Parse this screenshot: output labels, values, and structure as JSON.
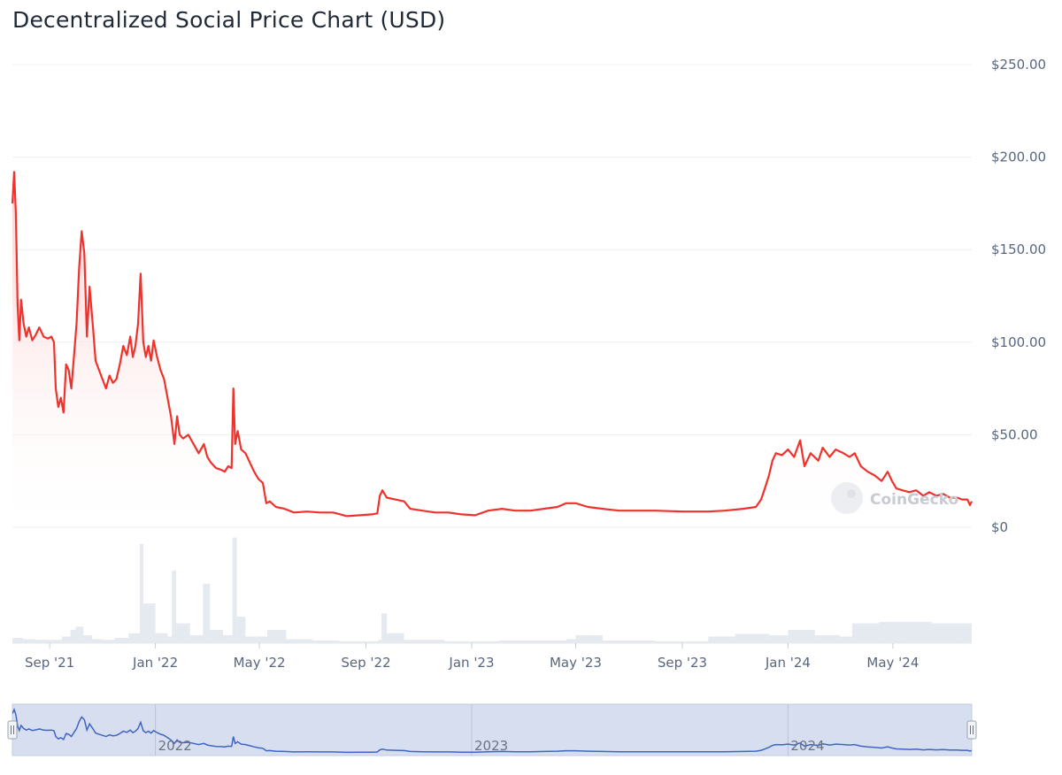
{
  "title": "Decentralized Social Price Chart (USD)",
  "watermark": "CoinGecko",
  "colors": {
    "price_line": "#f0322d",
    "area_top": "#fbc7c5",
    "volume": "#e5e9f0",
    "navigator_line": "#3f66c5",
    "navigator_fill": "#d6def0",
    "grid": "#eceff3",
    "axis_text": "#58667e"
  },
  "chart_data": {
    "type": "line",
    "title": "Decentralized Social Price Chart (USD)",
    "ylim": [
      0,
      250
    ],
    "y_ticks": [
      {
        "value": 0,
        "label": "$0"
      },
      {
        "value": 50,
        "label": "$50.00"
      },
      {
        "value": 100,
        "label": "$100.00"
      },
      {
        "value": 150,
        "label": "$150.00"
      },
      {
        "value": 200,
        "label": "$200.00"
      },
      {
        "value": 250,
        "label": "$250.00"
      }
    ],
    "xlim": [
      "2021-07-20",
      "2024-07-31"
    ],
    "x_ticks": [
      {
        "date": "2021-09-01",
        "label": "Sep '21"
      },
      {
        "date": "2022-01-01",
        "label": "Jan '22"
      },
      {
        "date": "2022-05-01",
        "label": "May '22"
      },
      {
        "date": "2022-09-01",
        "label": "Sep '22"
      },
      {
        "date": "2023-01-01",
        "label": "Jan '23"
      },
      {
        "date": "2023-05-01",
        "label": "May '23"
      },
      {
        "date": "2023-09-01",
        "label": "Sep '23"
      },
      {
        "date": "2024-01-01",
        "label": "Jan '24"
      },
      {
        "date": "2024-05-01",
        "label": "May '24"
      }
    ],
    "navigator_ticks": [
      {
        "date": "2022-01-01",
        "label": "2022"
      },
      {
        "date": "2023-01-01",
        "label": "2023"
      },
      {
        "date": "2024-01-01",
        "label": "2024"
      }
    ],
    "series": [
      {
        "values": [
          [
            "2021-07-20",
            175
          ],
          [
            "2021-07-22",
            192
          ],
          [
            "2021-07-24",
            170
          ],
          [
            "2021-07-26",
            120
          ],
          [
            "2021-07-28",
            101
          ],
          [
            "2021-07-30",
            123
          ],
          [
            "2021-08-02",
            110
          ],
          [
            "2021-08-05",
            103
          ],
          [
            "2021-08-08",
            108
          ],
          [
            "2021-08-12",
            101
          ],
          [
            "2021-08-16",
            104
          ],
          [
            "2021-08-20",
            108
          ],
          [
            "2021-08-25",
            103
          ],
          [
            "2021-08-30",
            102
          ],
          [
            "2021-09-03",
            103
          ],
          [
            "2021-09-06",
            100
          ],
          [
            "2021-09-08",
            75
          ],
          [
            "2021-09-11",
            65
          ],
          [
            "2021-09-14",
            70
          ],
          [
            "2021-09-17",
            62
          ],
          [
            "2021-09-20",
            88
          ],
          [
            "2021-09-23",
            85
          ],
          [
            "2021-09-26",
            75
          ],
          [
            "2021-09-29",
            92
          ],
          [
            "2021-10-02",
            110
          ],
          [
            "2021-10-05",
            140
          ],
          [
            "2021-10-08",
            160
          ],
          [
            "2021-10-11",
            148
          ],
          [
            "2021-10-14",
            103
          ],
          [
            "2021-10-17",
            130
          ],
          [
            "2021-10-21",
            108
          ],
          [
            "2021-10-24",
            90
          ],
          [
            "2021-10-28",
            85
          ],
          [
            "2021-11-01",
            80
          ],
          [
            "2021-11-05",
            75
          ],
          [
            "2021-11-09",
            82
          ],
          [
            "2021-11-13",
            78
          ],
          [
            "2021-11-17",
            80
          ],
          [
            "2021-11-21",
            88
          ],
          [
            "2021-11-25",
            98
          ],
          [
            "2021-11-29",
            93
          ],
          [
            "2021-12-03",
            103
          ],
          [
            "2021-12-06",
            92
          ],
          [
            "2021-12-09",
            98
          ],
          [
            "2021-12-12",
            110
          ],
          [
            "2021-12-15",
            137
          ],
          [
            "2021-12-18",
            100
          ],
          [
            "2021-12-21",
            92
          ],
          [
            "2021-12-24",
            98
          ],
          [
            "2021-12-27",
            90
          ],
          [
            "2021-12-30",
            101
          ],
          [
            "2022-01-03",
            92
          ],
          [
            "2022-01-07",
            85
          ],
          [
            "2022-01-11",
            80
          ],
          [
            "2022-01-15",
            70
          ],
          [
            "2022-01-19",
            60
          ],
          [
            "2022-01-23",
            45
          ],
          [
            "2022-01-26",
            60
          ],
          [
            "2022-01-29",
            50
          ],
          [
            "2022-02-02",
            48
          ],
          [
            "2022-02-08",
            50
          ],
          [
            "2022-02-14",
            45
          ],
          [
            "2022-02-20",
            40
          ],
          [
            "2022-02-26",
            45
          ],
          [
            "2022-03-02",
            38
          ],
          [
            "2022-03-06",
            35
          ],
          [
            "2022-03-12",
            32
          ],
          [
            "2022-03-18",
            31
          ],
          [
            "2022-03-22",
            30
          ],
          [
            "2022-03-26",
            33
          ],
          [
            "2022-03-30",
            32
          ],
          [
            "2022-04-01",
            75
          ],
          [
            "2022-04-03",
            45
          ],
          [
            "2022-04-06",
            52
          ],
          [
            "2022-04-10",
            42
          ],
          [
            "2022-04-15",
            40
          ],
          [
            "2022-04-20",
            35
          ],
          [
            "2022-04-25",
            30
          ],
          [
            "2022-04-30",
            26
          ],
          [
            "2022-05-05",
            24
          ],
          [
            "2022-05-09",
            13
          ],
          [
            "2022-05-13",
            14
          ],
          [
            "2022-05-20",
            11
          ],
          [
            "2022-05-30",
            10
          ],
          [
            "2022-06-10",
            8
          ],
          [
            "2022-06-25",
            8.5
          ],
          [
            "2022-07-10",
            8
          ],
          [
            "2022-07-25",
            8
          ],
          [
            "2022-08-10",
            6
          ],
          [
            "2022-08-25",
            6.5
          ],
          [
            "2022-09-08",
            7
          ],
          [
            "2022-09-14",
            7.5
          ],
          [
            "2022-09-17",
            17
          ],
          [
            "2022-09-20",
            20
          ],
          [
            "2022-09-25",
            16
          ],
          [
            "2022-10-05",
            15
          ],
          [
            "2022-10-15",
            14
          ],
          [
            "2022-10-22",
            10
          ],
          [
            "2022-11-05",
            9
          ],
          [
            "2022-11-20",
            8
          ],
          [
            "2022-12-05",
            8
          ],
          [
            "2022-12-20",
            7
          ],
          [
            "2023-01-05",
            6.5
          ],
          [
            "2023-01-20",
            9
          ],
          [
            "2023-02-05",
            10
          ],
          [
            "2023-02-20",
            9
          ],
          [
            "2023-03-10",
            9
          ],
          [
            "2023-03-25",
            10
          ],
          [
            "2023-04-10",
            11
          ],
          [
            "2023-04-20",
            13
          ],
          [
            "2023-05-01",
            13
          ],
          [
            "2023-05-15",
            11
          ],
          [
            "2023-06-01",
            10
          ],
          [
            "2023-06-20",
            9
          ],
          [
            "2023-07-10",
            9
          ],
          [
            "2023-08-01",
            9
          ],
          [
            "2023-09-01",
            8.5
          ],
          [
            "2023-10-01",
            8.5
          ],
          [
            "2023-10-20",
            9
          ],
          [
            "2023-11-10",
            10
          ],
          [
            "2023-11-25",
            11
          ],
          [
            "2023-12-01",
            15
          ],
          [
            "2023-12-06",
            22
          ],
          [
            "2023-12-10",
            28
          ],
          [
            "2023-12-14",
            36
          ],
          [
            "2023-12-18",
            40
          ],
          [
            "2023-12-25",
            39
          ],
          [
            "2024-01-01",
            42
          ],
          [
            "2024-01-08",
            38
          ],
          [
            "2024-01-15",
            47
          ],
          [
            "2024-01-20",
            33
          ],
          [
            "2024-01-27",
            40
          ],
          [
            "2024-02-05",
            36
          ],
          [
            "2024-02-10",
            43
          ],
          [
            "2024-02-18",
            38
          ],
          [
            "2024-02-25",
            42
          ],
          [
            "2024-03-05",
            40
          ],
          [
            "2024-03-12",
            38
          ],
          [
            "2024-03-18",
            40
          ],
          [
            "2024-03-25",
            33
          ],
          [
            "2024-04-02",
            30
          ],
          [
            "2024-04-10",
            28
          ],
          [
            "2024-04-18",
            25
          ],
          [
            "2024-04-25",
            30
          ],
          [
            "2024-04-30",
            25
          ],
          [
            "2024-05-05",
            21
          ],
          [
            "2024-05-12",
            20
          ],
          [
            "2024-05-20",
            19
          ],
          [
            "2024-05-28",
            20
          ],
          [
            "2024-06-05",
            17
          ],
          [
            "2024-06-12",
            19
          ],
          [
            "2024-06-20",
            17
          ],
          [
            "2024-06-28",
            18
          ],
          [
            "2024-07-06",
            16
          ],
          [
            "2024-07-14",
            16
          ],
          [
            "2024-07-20",
            15
          ],
          [
            "2024-07-26",
            15
          ],
          [
            "2024-07-29",
            12
          ],
          [
            "2024-07-31",
            14
          ]
        ]
      }
    ],
    "volume": [
      [
        "2021-07-20",
        8
      ],
      [
        "2021-08-01",
        6
      ],
      [
        "2021-08-15",
        5
      ],
      [
        "2021-09-01",
        5
      ],
      [
        "2021-09-15",
        10
      ],
      [
        "2021-09-25",
        20
      ],
      [
        "2021-10-01",
        25
      ],
      [
        "2021-10-10",
        12
      ],
      [
        "2021-10-20",
        6
      ],
      [
        "2021-11-01",
        5
      ],
      [
        "2021-11-15",
        8
      ],
      [
        "2021-12-01",
        15
      ],
      [
        "2021-12-14",
        150
      ],
      [
        "2021-12-18",
        60
      ],
      [
        "2022-01-01",
        15
      ],
      [
        "2022-01-15",
        10
      ],
      [
        "2022-01-20",
        110
      ],
      [
        "2022-01-25",
        30
      ],
      [
        "2022-02-10",
        12
      ],
      [
        "2022-02-25",
        90
      ],
      [
        "2022-03-05",
        20
      ],
      [
        "2022-03-20",
        12
      ],
      [
        "2022-03-31",
        160
      ],
      [
        "2022-04-05",
        40
      ],
      [
        "2022-04-15",
        10
      ],
      [
        "2022-05-10",
        20
      ],
      [
        "2022-06-01",
        6
      ],
      [
        "2022-07-01",
        4
      ],
      [
        "2022-08-01",
        3
      ],
      [
        "2022-09-15",
        5
      ],
      [
        "2022-09-19",
        45
      ],
      [
        "2022-09-25",
        15
      ],
      [
        "2022-10-15",
        5
      ],
      [
        "2022-12-01",
        3
      ],
      [
        "2023-02-01",
        4
      ],
      [
        "2023-04-20",
        6
      ],
      [
        "2023-05-01",
        12
      ],
      [
        "2023-06-01",
        4
      ],
      [
        "2023-08-01",
        3
      ],
      [
        "2023-10-01",
        10
      ],
      [
        "2023-11-01",
        14
      ],
      [
        "2023-12-10",
        12
      ],
      [
        "2024-01-01",
        20
      ],
      [
        "2024-02-01",
        12
      ],
      [
        "2024-03-01",
        10
      ],
      [
        "2024-03-15",
        30
      ],
      [
        "2024-04-15",
        32
      ],
      [
        "2024-05-15",
        32
      ],
      [
        "2024-06-15",
        30
      ],
      [
        "2024-07-15",
        30
      ],
      [
        "2024-07-31",
        5
      ]
    ]
  }
}
